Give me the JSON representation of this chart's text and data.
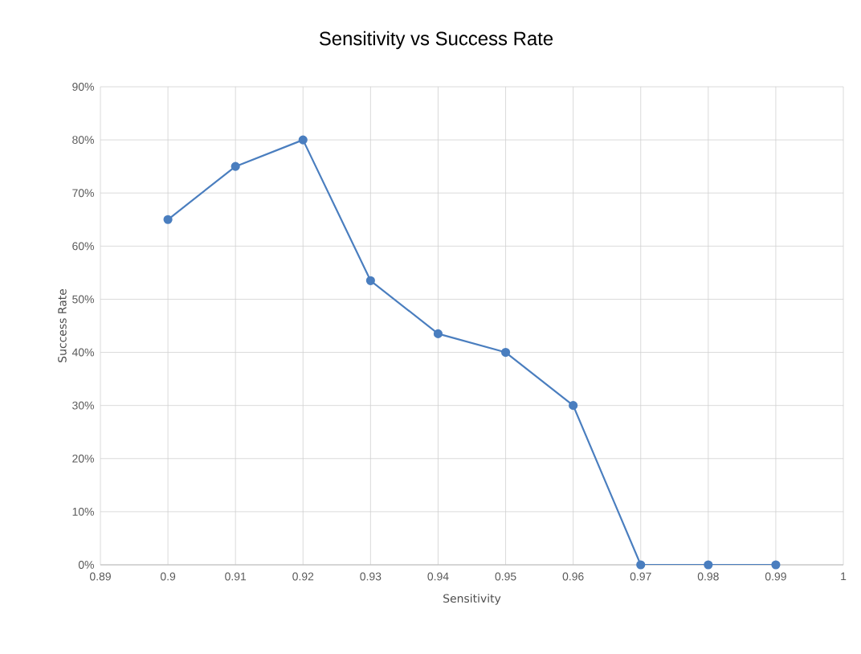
{
  "chart_data": {
    "type": "line",
    "title": "Sensitivity vs Success Rate",
    "xlabel": "Sensitivity",
    "ylabel": "Success Rate",
    "x": [
      0.9,
      0.91,
      0.92,
      0.93,
      0.94,
      0.95,
      0.96,
      0.97,
      0.98,
      0.99
    ],
    "series": [
      {
        "color": "#4a7ebf",
        "values": [
          65,
          75,
          80,
          53.5,
          43.5,
          40,
          30,
          0,
          0,
          0
        ]
      }
    ],
    "xlim": [
      0.89,
      1
    ],
    "xticks": [
      0.89,
      0.9,
      0.91,
      0.92,
      0.93,
      0.94,
      0.95,
      0.96,
      0.97,
      0.98,
      0.99,
      1
    ],
    "ylim": [
      0,
      90
    ],
    "yticks": [
      {
        "value": 0,
        "label": "0%"
      },
      {
        "value": 10,
        "label": "10%"
      },
      {
        "value": 20,
        "label": "20%"
      },
      {
        "value": 30,
        "label": "30%"
      },
      {
        "value": 40,
        "label": "40%"
      },
      {
        "value": 50,
        "label": "50%"
      },
      {
        "value": 60,
        "label": "60%"
      },
      {
        "value": 70,
        "label": "70%"
      },
      {
        "value": 80,
        "label": "80%"
      },
      {
        "value": 90,
        "label": "90%"
      }
    ],
    "grid": true,
    "marker": "circle",
    "line_style": "solid"
  }
}
